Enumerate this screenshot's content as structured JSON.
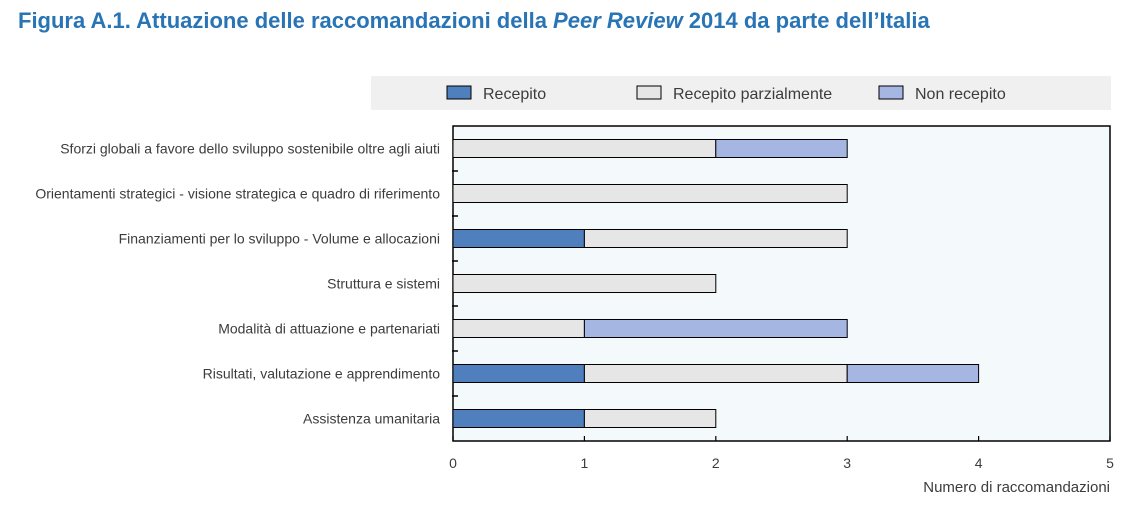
{
  "title": {
    "prefix": "Figura A.1. Attuazione delle raccomandazioni della ",
    "italic": "Peer Review",
    "suffix": " 2014 da parte dell’Italia"
  },
  "chart_data": {
    "type": "bar",
    "orientation": "horizontal",
    "stacked": true,
    "categories": [
      "Sforzi globali a favore dello sviluppo sostenibile oltre agli aiuti",
      "Orientamenti strategici - visione strategica e quadro di riferimento",
      "Finanziamenti per lo sviluppo - Volume e allocazioni",
      "Struttura e sistemi",
      "Modalità di attuazione e partenariati",
      "Risultati, valutazione e apprendimento",
      "Assistenza umanitaria"
    ],
    "series": [
      {
        "name": "Recepito",
        "color": "#4f7fbc",
        "values": [
          0,
          0,
          1,
          0,
          0,
          1,
          1
        ]
      },
      {
        "name": "Recepito parzialmente",
        "color": "#e6e6e6",
        "values": [
          2,
          3,
          2,
          2,
          1,
          2,
          1
        ]
      },
      {
        "name": "Non recepito",
        "color": "#a6b6e3",
        "values": [
          1,
          0,
          0,
          0,
          2,
          1,
          0
        ]
      }
    ],
    "xlim": [
      0,
      5
    ],
    "xticks": [
      0,
      1,
      2,
      3,
      4,
      5
    ],
    "xlabel": "Numero di raccomandazioni",
    "legend_position": "top",
    "grid": false,
    "plot_background": "#f4f9fc"
  }
}
